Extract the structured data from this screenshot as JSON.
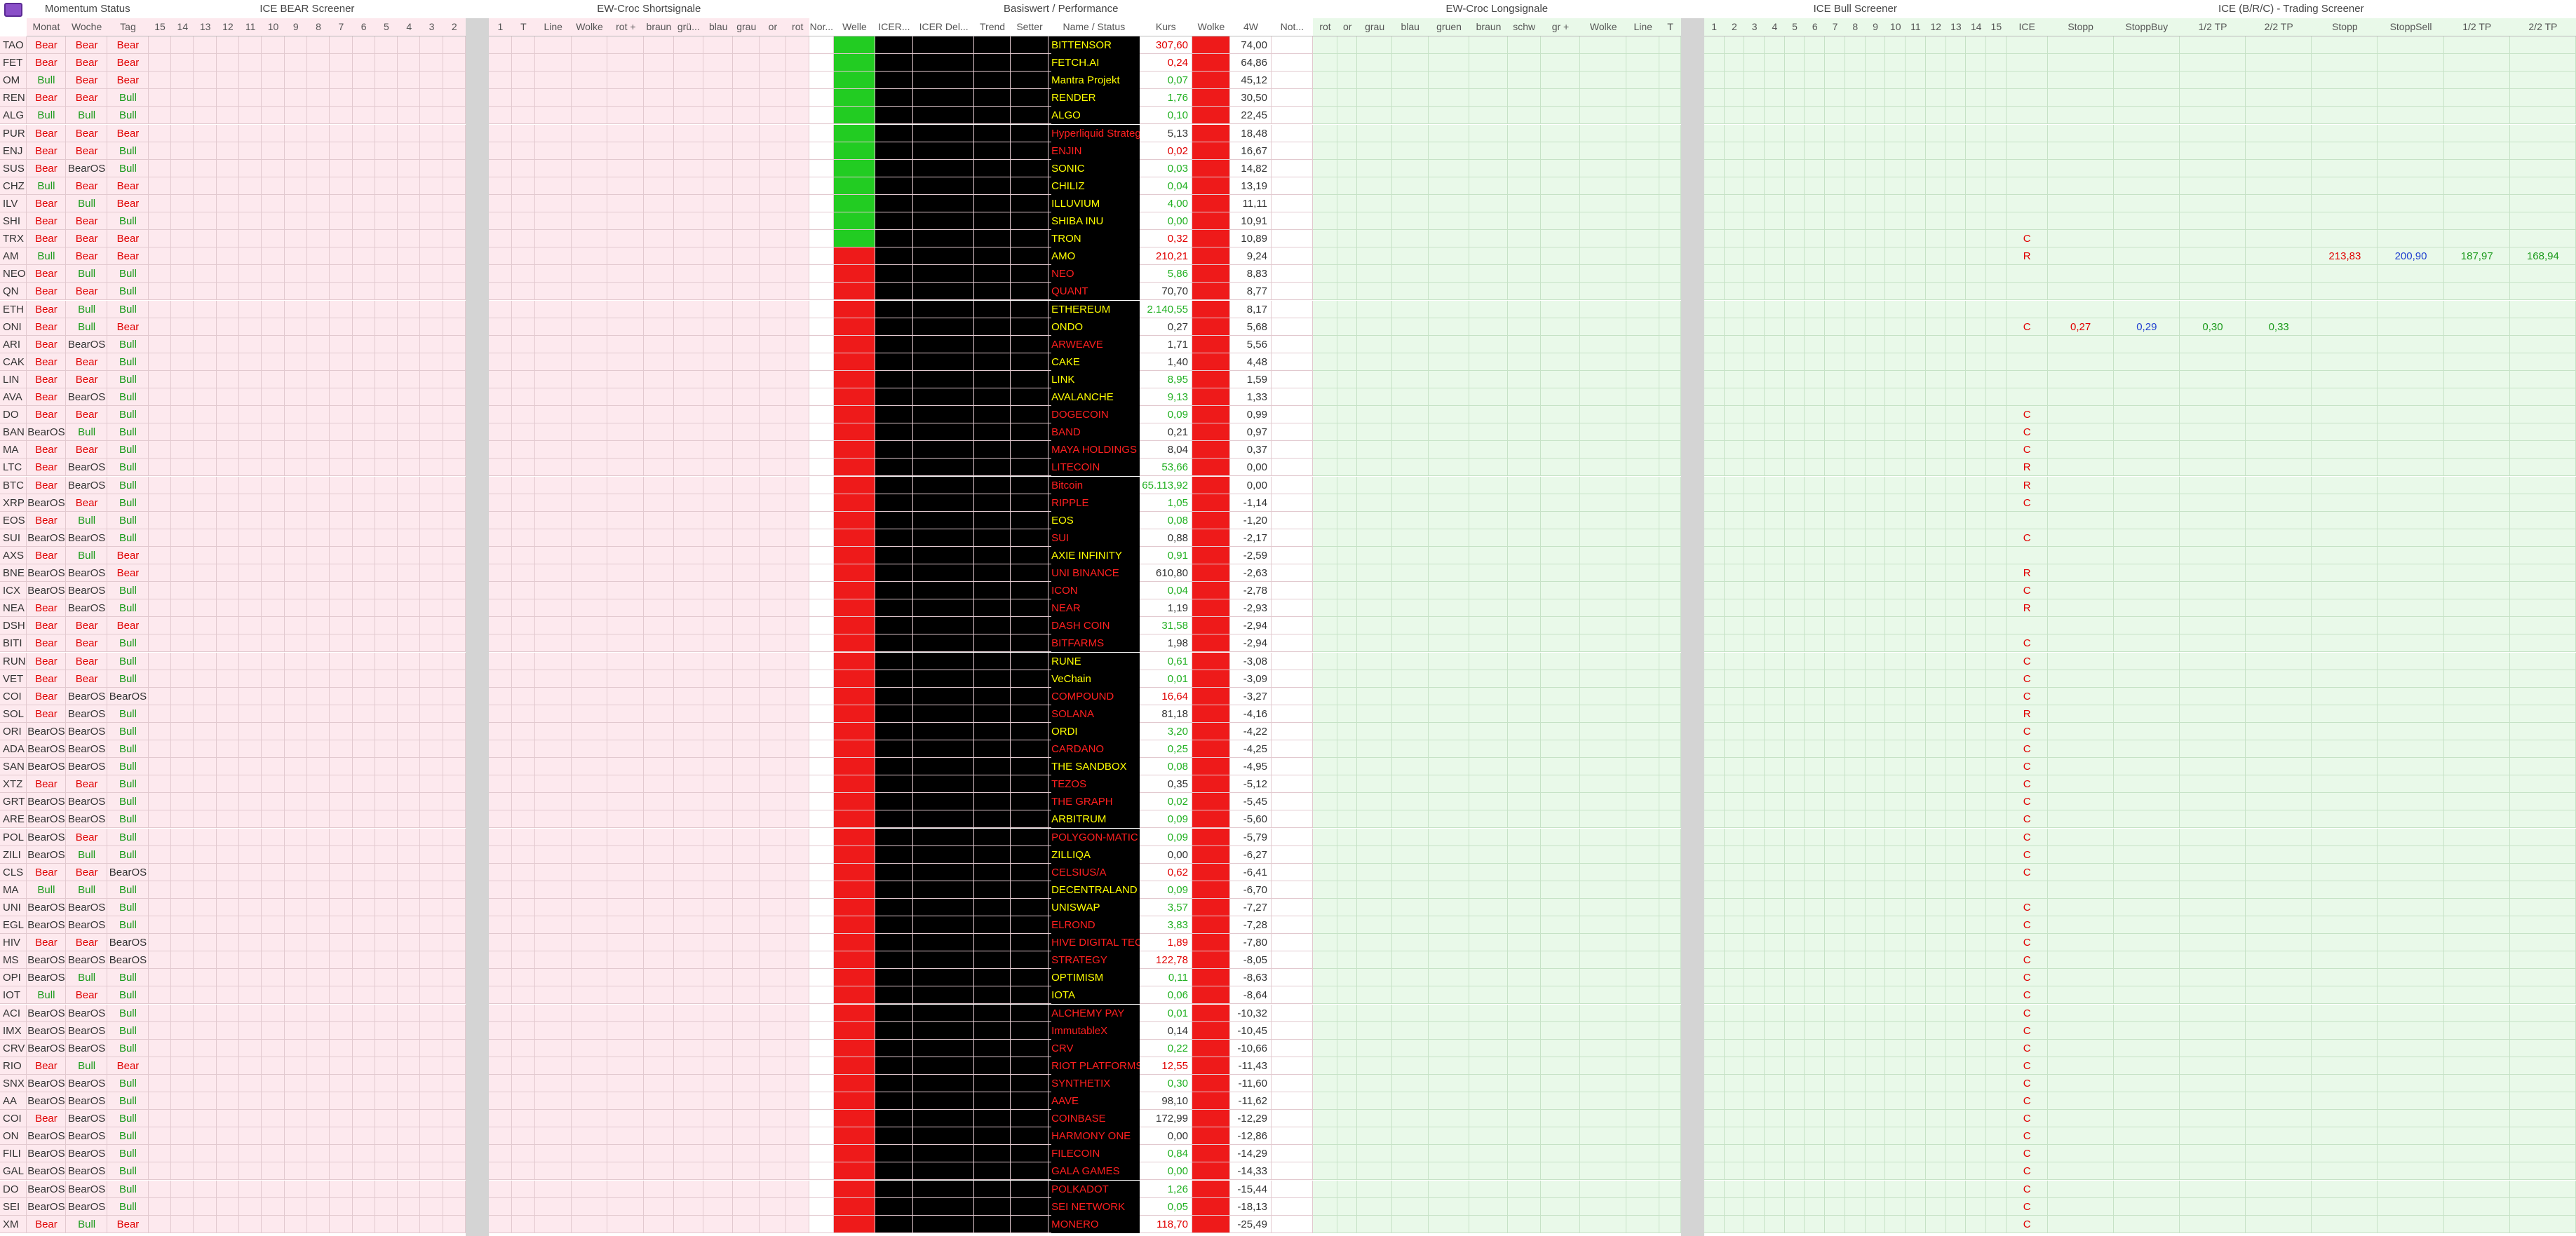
{
  "sections": [
    "Momentum Status",
    "ICE BEAR Screener",
    "EW-Croc Shortsignale",
    "Basiswert / Performance",
    "EW-Croc Longsignale",
    "ICE Bull Screener",
    "ICE (B/R/C) - Trading Screener"
  ],
  "columns": [
    "Monat",
    "Woche",
    "Tag",
    "15",
    "14",
    "13",
    "12",
    "11",
    "10",
    "9",
    "8",
    "7",
    "6",
    "5",
    "4",
    "3",
    "2",
    "1",
    "T",
    "Line",
    "Wolke",
    "rot +",
    "braun",
    "grü...",
    "blau",
    "grau",
    "or",
    "rot",
    "Nor...",
    "Welle",
    "ICER...",
    "ICER Del...",
    "Trend",
    "Setter",
    "Name / Status",
    "Kurs",
    "Wolke",
    "4W",
    "Not...",
    "rot",
    "or",
    "grau",
    "blau",
    "gruen",
    "braun",
    "schw",
    "gr +",
    "Wolke",
    "Line",
    "T",
    "1",
    "2",
    "3",
    "4",
    "5",
    "6",
    "7",
    "8",
    "9",
    "10",
    "11",
    "12",
    "13",
    "14",
    "15",
    "ICE",
    "Stopp",
    "StoppBuy",
    "1/2 TP",
    "2/2 TP",
    "Stopp",
    "StoppSell",
    "1/2 TP",
    "2/2 TP"
  ],
  "rows": [
    {
      "t": "TAO",
      "m": "Bear",
      "w": "Bear",
      "d": "Bear",
      "name": "BITTENSOR",
      "name_color": "#ffff00",
      "kurs": "307,60",
      "kurs_color": "#e00000",
      "w4": "74,00"
    },
    {
      "t": "FET",
      "m": "Bear",
      "w": "Bear",
      "d": "Bear",
      "name": "FETCH.AI",
      "name_color": "#ffff00",
      "kurs": "0,24",
      "kurs_color": "#e00000",
      "w4": "64,86"
    },
    {
      "t": "OM",
      "m": "Bull",
      "w": "Bear",
      "d": "Bear",
      "name": "Mantra Projekt",
      "name_color": "#ffff00",
      "kurs": "0,07",
      "kurs_color": "#22b022",
      "w4": "45,12"
    },
    {
      "t": "REN",
      "m": "Bear",
      "w": "Bear",
      "d": "Bull",
      "name": "RENDER",
      "name_color": "#ffff00",
      "kurs": "1,76",
      "kurs_color": "#22b022",
      "w4": "30,50"
    },
    {
      "t": "ALG",
      "m": "Bull",
      "w": "Bull",
      "d": "Bull",
      "name": "ALGO",
      "name_color": "#ffff00",
      "kurs": "0,10",
      "kurs_color": "#22b022",
      "w4": "22,45"
    },
    {
      "t": "PUR",
      "m": "Bear",
      "w": "Bear",
      "d": "Bear",
      "name": "Hyperliquid Strateg",
      "name_color": "#ff2020",
      "kurs": "5,13",
      "kurs_color": "#333333",
      "w4": "18,48"
    },
    {
      "t": "ENJ",
      "m": "Bear",
      "w": "Bear",
      "d": "Bull",
      "name": "ENJIN",
      "name_color": "#ff2020",
      "kurs": "0,02",
      "kurs_color": "#e00000",
      "w4": "16,67"
    },
    {
      "t": "SUS",
      "m": "Bear",
      "w": "BearOS",
      "d": "Bull",
      "name": "SONIC",
      "name_color": "#ffff00",
      "kurs": "0,03",
      "kurs_color": "#22b022",
      "w4": "14,82"
    },
    {
      "t": "CHZ",
      "m": "Bull",
      "w": "Bear",
      "d": "Bear",
      "name": "CHILIZ",
      "name_color": "#ffff00",
      "kurs": "0,04",
      "kurs_color": "#22b022",
      "w4": "13,19"
    },
    {
      "t": "ILV",
      "m": "Bear",
      "w": "Bull",
      "d": "Bear",
      "name": "ILLUVIUM",
      "name_color": "#ffff00",
      "kurs": "4,00",
      "kurs_color": "#22b022",
      "w4": "11,11"
    },
    {
      "t": "SHI",
      "m": "Bear",
      "w": "Bear",
      "d": "Bull",
      "name": "SHIBA INU",
      "name_color": "#ffff00",
      "kurs": "0,00",
      "kurs_color": "#22b022",
      "w4": "10,91"
    },
    {
      "t": "TRX",
      "m": "Bear",
      "w": "Bear",
      "d": "Bear",
      "name": "TRON",
      "name_color": "#ffff00",
      "kurs": "0,32",
      "kurs_color": "#e00000",
      "w4": "10,89",
      "ice": "C"
    },
    {
      "t": "AM",
      "m": "Bull",
      "w": "Bear",
      "d": "Bear",
      "name": "AMO",
      "name_color": "#ffff00",
      "kurs": "210,21",
      "kurs_color": "#e00000",
      "w4": "9,24",
      "ice": "R",
      "trading": [
        null,
        null,
        null,
        null,
        "213,83",
        "200,90",
        "187,97",
        "168,94"
      ]
    },
    {
      "t": "NEO",
      "m": "Bear",
      "w": "Bull",
      "d": "Bull",
      "name": "NEO",
      "name_color": "#ff2020",
      "kurs": "5,86",
      "kurs_color": "#22b022",
      "w4": "8,83"
    },
    {
      "t": "QN",
      "m": "Bear",
      "w": "Bear",
      "d": "Bull",
      "name": "QUANT",
      "name_color": "#ff2020",
      "kurs": "70,70",
      "kurs_color": "#333333",
      "w4": "8,77"
    },
    {
      "t": "ETH",
      "m": "Bear",
      "w": "Bull",
      "d": "Bull",
      "name": "ETHEREUM",
      "name_color": "#ffff00",
      "kurs": "2.140,55",
      "kurs_color": "#22b022",
      "w4": "8,17"
    },
    {
      "t": "ONI",
      "m": "Bear",
      "w": "Bull",
      "d": "Bear",
      "name": "ONDO",
      "name_color": "#ffff00",
      "kurs": "0,27",
      "kurs_color": "#333333",
      "w4": "5,68",
      "ice": "C",
      "trading": [
        "0,27",
        "0,29",
        "0,30",
        "0,33",
        null,
        null,
        null,
        null
      ]
    },
    {
      "t": "ARI",
      "m": "Bear",
      "w": "BearOS",
      "d": "Bull",
      "name": "ARWEAVE",
      "name_color": "#ff2020",
      "kurs": "1,71",
      "kurs_color": "#333333",
      "w4": "5,56"
    },
    {
      "t": "CAK",
      "m": "Bear",
      "w": "Bear",
      "d": "Bull",
      "name": "CAKE",
      "name_color": "#ffff00",
      "kurs": "1,40",
      "kurs_color": "#333333",
      "w4": "4,48"
    },
    {
      "t": "LIN",
      "m": "Bear",
      "w": "Bear",
      "d": "Bull",
      "name": "LINK",
      "name_color": "#ffff00",
      "kurs": "8,95",
      "kurs_color": "#22b022",
      "w4": "1,59"
    },
    {
      "t": "AVA",
      "m": "Bear",
      "w": "BearOS",
      "d": "Bull",
      "name": "AVALANCHE",
      "name_color": "#ffff00",
      "kurs": "9,13",
      "kurs_color": "#22b022",
      "w4": "1,33"
    },
    {
      "t": "DO",
      "m": "Bear",
      "w": "Bear",
      "d": "Bull",
      "name": "DOGECOIN",
      "name_color": "#ff2020",
      "kurs": "0,09",
      "kurs_color": "#22b022",
      "w4": "0,99",
      "ice": "C"
    },
    {
      "t": "BAN",
      "m": "BearOS",
      "w": "Bull",
      "d": "Bull",
      "name": "BAND",
      "name_color": "#ff2020",
      "kurs": "0,21",
      "kurs_color": "#333333",
      "w4": "0,97",
      "ice": "C"
    },
    {
      "t": "MA",
      "m": "Bear",
      "w": "Bear",
      "d": "Bull",
      "name": "MAYA HOLDINGS",
      "name_color": "#ff2020",
      "kurs": "8,04",
      "kurs_color": "#333333",
      "w4": "0,37",
      "ice": "C"
    },
    {
      "t": "LTC",
      "m": "Bear",
      "w": "BearOS",
      "d": "Bull",
      "name": "LITECOIN",
      "name_color": "#ff2020",
      "kurs": "53,66",
      "kurs_color": "#22b022",
      "w4": "0,00",
      "ice": "R"
    },
    {
      "t": "BTC",
      "m": "Bear",
      "w": "BearOS",
      "d": "Bull",
      "name": "Bitcoin",
      "name_color": "#ff2020",
      "kurs": "65.113,92",
      "kurs_color": "#22b022",
      "w4": "0,00",
      "ice": "R"
    },
    {
      "t": "XRP",
      "m": "BearOS",
      "w": "Bear",
      "d": "Bull",
      "name": "RIPPLE",
      "name_color": "#ff2020",
      "kurs": "1,05",
      "kurs_color": "#22b022",
      "w4": "-1,14",
      "ice": "C"
    },
    {
      "t": "EOS",
      "m": "Bear",
      "w": "Bull",
      "d": "Bull",
      "name": "EOS",
      "name_color": "#ffff00",
      "kurs": "0,08",
      "kurs_color": "#22b022",
      "w4": "-1,20"
    },
    {
      "t": "SUI",
      "m": "BearOS",
      "w": "BearOS",
      "d": "Bull",
      "name": "SUI",
      "name_color": "#ff2020",
      "kurs": "0,88",
      "kurs_color": "#333333",
      "w4": "-2,17",
      "ice": "C"
    },
    {
      "t": "AXS",
      "m": "Bear",
      "w": "Bull",
      "d": "Bear",
      "name": "AXIE INFINITY",
      "name_color": "#ffff00",
      "kurs": "0,91",
      "kurs_color": "#22b022",
      "w4": "-2,59"
    },
    {
      "t": "BNE",
      "m": "BearOS",
      "w": "BearOS",
      "d": "Bear",
      "name": "UNI BINANCE",
      "name_color": "#ff2020",
      "kurs": "610,80",
      "kurs_color": "#333333",
      "w4": "-2,63",
      "ice": "R"
    },
    {
      "t": "ICX",
      "m": "BearOS",
      "w": "BearOS",
      "d": "Bull",
      "name": "ICON",
      "name_color": "#ff2020",
      "kurs": "0,04",
      "kurs_color": "#22b022",
      "w4": "-2,78",
      "ice": "C"
    },
    {
      "t": "NEA",
      "m": "Bear",
      "w": "BearOS",
      "d": "Bull",
      "name": "NEAR",
      "name_color": "#ff2020",
      "kurs": "1,19",
      "kurs_color": "#333333",
      "w4": "-2,93",
      "ice": "R"
    },
    {
      "t": "DSH",
      "m": "Bear",
      "w": "Bear",
      "d": "Bear",
      "name": "DASH COIN",
      "name_color": "#ff2020",
      "kurs": "31,58",
      "kurs_color": "#22b022",
      "w4": "-2,94"
    },
    {
      "t": "BITI",
      "m": "Bear",
      "w": "Bear",
      "d": "Bull",
      "name": "BITFARMS",
      "name_color": "#ff2020",
      "kurs": "1,98",
      "kurs_color": "#333333",
      "w4": "-2,94",
      "ice": "C"
    },
    {
      "t": "RUN",
      "m": "Bear",
      "w": "Bear",
      "d": "Bull",
      "name": "RUNE",
      "name_color": "#ffff00",
      "kurs": "0,61",
      "kurs_color": "#22b022",
      "w4": "-3,08",
      "ice": "C"
    },
    {
      "t": "VET",
      "m": "Bear",
      "w": "Bear",
      "d": "Bull",
      "name": "VeChain",
      "name_color": "#ffff00",
      "kurs": "0,01",
      "kurs_color": "#22b022",
      "w4": "-3,09",
      "ice": "C"
    },
    {
      "t": "COI",
      "m": "Bear",
      "w": "BearOS",
      "d": "BearOS",
      "name": "COMPOUND",
      "name_color": "#ff2020",
      "kurs": "16,64",
      "kurs_color": "#e00000",
      "w4": "-3,27",
      "ice": "C"
    },
    {
      "t": "SOL",
      "m": "Bear",
      "w": "BearOS",
      "d": "Bull",
      "name": "SOLANA",
      "name_color": "#ff2020",
      "kurs": "81,18",
      "kurs_color": "#333333",
      "w4": "-4,16",
      "ice": "R"
    },
    {
      "t": "ORI",
      "m": "BearOS",
      "w": "BearOS",
      "d": "Bull",
      "name": "ORDI",
      "name_color": "#ffff00",
      "kurs": "3,20",
      "kurs_color": "#22b022",
      "w4": "-4,22",
      "ice": "C"
    },
    {
      "t": "ADA",
      "m": "BearOS",
      "w": "BearOS",
      "d": "Bull",
      "name": "CARDANO",
      "name_color": "#ff2020",
      "kurs": "0,25",
      "kurs_color": "#22b022",
      "w4": "-4,25",
      "ice": "C"
    },
    {
      "t": "SAN",
      "m": "BearOS",
      "w": "BearOS",
      "d": "Bull",
      "name": "THE SANDBOX",
      "name_color": "#ffff00",
      "kurs": "0,08",
      "kurs_color": "#22b022",
      "w4": "-4,95",
      "ice": "C"
    },
    {
      "t": "XTZ",
      "m": "Bear",
      "w": "Bear",
      "d": "Bull",
      "name": "TEZOS",
      "name_color": "#ff2020",
      "kurs": "0,35",
      "kurs_color": "#333333",
      "w4": "-5,12",
      "ice": "C"
    },
    {
      "t": "GRT",
      "m": "BearOS",
      "w": "BearOS",
      "d": "Bull",
      "name": "THE GRAPH",
      "name_color": "#ff2020",
      "kurs": "0,02",
      "kurs_color": "#22b022",
      "w4": "-5,45",
      "ice": "C"
    },
    {
      "t": "ARE",
      "m": "BearOS",
      "w": "BearOS",
      "d": "Bull",
      "name": "ARBITRUM",
      "name_color": "#ffff00",
      "kurs": "0,09",
      "kurs_color": "#22b022",
      "w4": "-5,60",
      "ice": "C"
    },
    {
      "t": "POL",
      "m": "BearOS",
      "w": "Bear",
      "d": "Bull",
      "name": "POLYGON-MATIC",
      "name_color": "#ff2020",
      "kurs": "0,09",
      "kurs_color": "#22b022",
      "w4": "-5,79",
      "ice": "C"
    },
    {
      "t": "ZILI",
      "m": "BearOS",
      "w": "Bull",
      "d": "Bull",
      "name": "ZILLIQA",
      "name_color": "#ffff00",
      "kurs": "0,00",
      "kurs_color": "#333333",
      "w4": "-6,27",
      "ice": "C"
    },
    {
      "t": "CLS",
      "m": "Bear",
      "w": "Bear",
      "d": "BearOS",
      "name": "CELSIUS/A",
      "name_color": "#ff2020",
      "kurs": "0,62",
      "kurs_color": "#e00000",
      "w4": "-6,41",
      "ice": "C"
    },
    {
      "t": "MA",
      "m": "Bull",
      "w": "Bull",
      "d": "Bull",
      "name": "DECENTRALAND",
      "name_color": "#ffff00",
      "kurs": "0,09",
      "kurs_color": "#22b022",
      "w4": "-6,70"
    },
    {
      "t": "UNI",
      "m": "BearOS",
      "w": "BearOS",
      "d": "Bull",
      "name": "UNISWAP",
      "name_color": "#ffff00",
      "kurs": "3,57",
      "kurs_color": "#22b022",
      "w4": "-7,27",
      "ice": "C"
    },
    {
      "t": "EGL",
      "m": "BearOS",
      "w": "BearOS",
      "d": "Bull",
      "name": "ELROND",
      "name_color": "#ff2020",
      "kurs": "3,83",
      "kurs_color": "#22b022",
      "w4": "-7,28",
      "ice": "C"
    },
    {
      "t": "HIV",
      "m": "Bear",
      "w": "Bear",
      "d": "BearOS",
      "name": "HIVE DIGITAL TECH",
      "name_color": "#ff2020",
      "kurs": "1,89",
      "kurs_color": "#e00000",
      "w4": "-7,80",
      "ice": "C"
    },
    {
      "t": "MS",
      "m": "BearOS",
      "w": "BearOS",
      "d": "BearOS",
      "name": "STRATEGY",
      "name_color": "#ff2020",
      "kurs": "122,78",
      "kurs_color": "#e00000",
      "w4": "-8,05",
      "ice": "C"
    },
    {
      "t": "OPI",
      "m": "BearOS",
      "w": "Bull",
      "d": "Bull",
      "name": "OPTIMISM",
      "name_color": "#ffff00",
      "kurs": "0,11",
      "kurs_color": "#22b022",
      "w4": "-8,63",
      "ice": "C"
    },
    {
      "t": "IOT",
      "m": "Bull",
      "w": "Bear",
      "d": "Bull",
      "name": "IOTA",
      "name_color": "#ffff00",
      "kurs": "0,06",
      "kurs_color": "#22b022",
      "w4": "-8,64",
      "ice": "C"
    },
    {
      "t": "ACI",
      "m": "BearOS",
      "w": "BearOS",
      "d": "Bull",
      "name": "ALCHEMY PAY",
      "name_color": "#ff2020",
      "kurs": "0,01",
      "kurs_color": "#22b022",
      "w4": "-10,32",
      "ice": "C"
    },
    {
      "t": "IMX",
      "m": "BearOS",
      "w": "BearOS",
      "d": "Bull",
      "name": "ImmutableX",
      "name_color": "#ff2020",
      "kurs": "0,14",
      "kurs_color": "#333333",
      "w4": "-10,45",
      "ice": "C"
    },
    {
      "t": "CRV",
      "m": "BearOS",
      "w": "BearOS",
      "d": "Bull",
      "name": "CRV",
      "name_color": "#ff2020",
      "kurs": "0,22",
      "kurs_color": "#22b022",
      "w4": "-10,66",
      "ice": "C"
    },
    {
      "t": "RIO",
      "m": "Bear",
      "w": "Bull",
      "d": "Bear",
      "name": "RIOT PLATFORMS",
      "name_color": "#ff2020",
      "kurs": "12,55",
      "kurs_color": "#e00000",
      "w4": "-11,43",
      "ice": "C"
    },
    {
      "t": "SNX",
      "m": "BearOS",
      "w": "BearOS",
      "d": "Bull",
      "name": "SYNTHETIX",
      "name_color": "#ff2020",
      "kurs": "0,30",
      "kurs_color": "#22b022",
      "w4": "-11,60",
      "ice": "C"
    },
    {
      "t": "AA",
      "m": "BearOS",
      "w": "BearOS",
      "d": "Bull",
      "name": "AAVE",
      "name_color": "#ff2020",
      "kurs": "98,10",
      "kurs_color": "#333333",
      "w4": "-11,62",
      "ice": "C"
    },
    {
      "t": "COI",
      "m": "Bear",
      "w": "BearOS",
      "d": "Bull",
      "name": "COINBASE",
      "name_color": "#ff2020",
      "kurs": "172,99",
      "kurs_color": "#333333",
      "w4": "-12,29",
      "ice": "C"
    },
    {
      "t": "ON",
      "m": "BearOS",
      "w": "BearOS",
      "d": "Bull",
      "name": "HARMONY ONE",
      "name_color": "#ff2020",
      "kurs": "0,00",
      "kurs_color": "#333333",
      "w4": "-12,86",
      "ice": "C"
    },
    {
      "t": "FILI",
      "m": "BearOS",
      "w": "BearOS",
      "d": "Bull",
      "name": "FILECOIN",
      "name_color": "#ff2020",
      "kurs": "0,84",
      "kurs_color": "#22b022",
      "w4": "-14,29",
      "ice": "C"
    },
    {
      "t": "GAL",
      "m": "BearOS",
      "w": "BearOS",
      "d": "Bull",
      "name": "GALA GAMES",
      "name_color": "#ff2020",
      "kurs": "0,00",
      "kurs_color": "#22b022",
      "w4": "-14,33",
      "ice": "C"
    },
    {
      "t": "DO",
      "m": "BearOS",
      "w": "BearOS",
      "d": "Bull",
      "name": "POLKADOT",
      "name_color": "#ff2020",
      "kurs": "1,26",
      "kurs_color": "#22b022",
      "w4": "-15,44",
      "ice": "C"
    },
    {
      "t": "SEI",
      "m": "BearOS",
      "w": "BearOS",
      "d": "Bull",
      "name": "SEI NETWORK",
      "name_color": "#ff2020",
      "kurs": "0,05",
      "kurs_color": "#22b022",
      "w4": "-18,13",
      "ice": "C"
    },
    {
      "t": "XM",
      "m": "Bear",
      "w": "Bull",
      "d": "Bear",
      "name": "MONERO",
      "name_color": "#ff2020",
      "kurs": "118,70",
      "kurs_color": "#e00000",
      "w4": "-25,49",
      "ice": "C"
    }
  ]
}
